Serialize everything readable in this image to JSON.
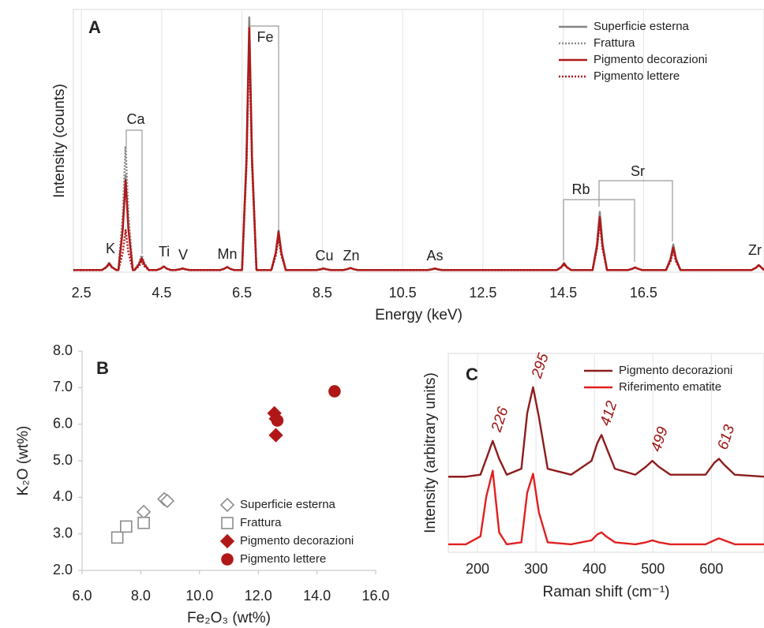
{
  "chart_data": [
    {
      "type": "line",
      "panel_label": "A",
      "xlabel": "Energy (keV)",
      "ylabel": "Intensity (counts)",
      "xlim": [
        2.3,
        19.5
      ],
      "ylim": [
        0,
        100
      ],
      "xticks": [
        2.5,
        4.5,
        6.5,
        8.5,
        10.5,
        12.5,
        14.5,
        16.5
      ],
      "grid": true,
      "legend": "upper right",
      "annotations": [
        "K",
        "Ca",
        "Ti",
        "V",
        "Mn",
        "Fe",
        "Cu",
        "Zn",
        "As",
        "Rb",
        "Sr",
        "Zr"
      ],
      "x": [
        2.3,
        3.01,
        3.12,
        3.19,
        3.26,
        3.37,
        3.42,
        3.53,
        3.6,
        3.67,
        3.78,
        3.82,
        3.93,
        4.0,
        4.07,
        4.18,
        4.37,
        4.48,
        4.55,
        4.62,
        4.73,
        4.84,
        4.95,
        5.02,
        5.09,
        5.2,
        5.95,
        6.06,
        6.13,
        6.2,
        6.31,
        6.5,
        6.61,
        6.68,
        6.75,
        6.86,
        7.23,
        7.34,
        7.41,
        7.48,
        7.59,
        8.35,
        8.46,
        8.53,
        8.6,
        8.71,
        9.02,
        9.13,
        9.2,
        9.27,
        9.38,
        11.12,
        11.23,
        11.3,
        11.37,
        11.48,
        14.34,
        14.45,
        14.52,
        14.59,
        14.7,
        15.23,
        15.34,
        15.41,
        15.48,
        15.59,
        16.11,
        16.22,
        16.29,
        16.36,
        16.47,
        17.06,
        17.17,
        17.24,
        17.31,
        17.42,
        19.19,
        19.3,
        19.37,
        19.44,
        19.5
      ],
      "series": [
        {
          "name": "Superficie esterna",
          "color": "#858585",
          "dash": "solid",
          "values": [
            0.8,
            0.8,
            2.0,
            3.5,
            2.0,
            0.8,
            0.8,
            17.1,
            37,
            17.1,
            0.8,
            0.8,
            2.9,
            5.5,
            2.9,
            0.8,
            0.8,
            1.4,
            2.2,
            1.4,
            0.8,
            0.8,
            1.1,
            1.4,
            1.1,
            0.8,
            0.8,
            1.3,
            2.0,
            1.3,
            0.8,
            0.8,
            44.1,
            97,
            44.1,
            0.8,
            0.8,
            7.6,
            16,
            7.6,
            0.8,
            0.8,
            1.1,
            1.4,
            1.1,
            0.8,
            0.8,
            1.2,
            1.6,
            1.2,
            0.8,
            0.8,
            1.1,
            1.4,
            1.1,
            0.8,
            0.8,
            2.0,
            3.5,
            2.0,
            0.8,
            0.8,
            10.8,
            23,
            10.8,
            0.8,
            0.8,
            1.3,
            1.8,
            1.3,
            0.8,
            0.8,
            5.2,
            10.6,
            5.2,
            0.8,
            0.8,
            1.7,
            2.7,
            1.7,
            0.8
          ]
        },
        {
          "name": "Frattura",
          "color": "#8c8c8c",
          "dash": "dotted",
          "values": [
            0.8,
            0.8,
            2.0,
            3.5,
            2.0,
            0.8,
            0.8,
            22.0,
            48,
            22.0,
            0.8,
            0.8,
            3.4,
            6.5,
            3.4,
            0.8,
            0.8,
            1.4,
            2.2,
            1.4,
            0.8,
            0.8,
            1.1,
            1.4,
            1.1,
            0.8,
            0.8,
            1.3,
            2.0,
            1.3,
            0.8,
            0.8,
            41.6,
            91.5,
            41.6,
            0.8,
            0.8,
            7.2,
            15,
            7.2,
            0.8,
            0.8,
            1.1,
            1.4,
            1.1,
            0.8,
            0.8,
            1.2,
            1.6,
            1.2,
            0.8,
            0.8,
            1.1,
            1.4,
            1.1,
            0.8,
            0.8,
            1.9,
            3.3,
            1.9,
            0.8,
            0.8,
            10.3,
            22,
            10.3,
            0.8,
            0.8,
            1.3,
            1.8,
            1.3,
            0.8,
            0.8,
            4.9,
            10,
            4.9,
            0.8,
            0.8,
            1.7,
            2.7,
            1.7,
            0.8
          ]
        },
        {
          "name": "Pigmento decorazioni",
          "color": "#b01818",
          "dash": "solid",
          "values": [
            0.8,
            0.8,
            1.9,
            3.3,
            1.9,
            0.8,
            0.8,
            16.2,
            35,
            16.2,
            0.8,
            0.8,
            2.9,
            5.4,
            2.9,
            0.8,
            0.8,
            1.4,
            2.2,
            1.4,
            0.8,
            0.8,
            1.1,
            1.4,
            1.1,
            0.8,
            0.8,
            1.3,
            2.0,
            1.3,
            0.8,
            0.8,
            42.3,
            93,
            42.3,
            0.8,
            0.8,
            7.4,
            15.4,
            7.4,
            0.8,
            0.8,
            1.1,
            1.4,
            1.1,
            0.8,
            0.8,
            1.2,
            1.6,
            1.2,
            0.8,
            0.8,
            1.1,
            1.4,
            1.1,
            0.8,
            0.8,
            1.9,
            3.3,
            1.9,
            0.8,
            0.8,
            9.9,
            21,
            9.9,
            0.8,
            0.8,
            1.3,
            1.8,
            1.3,
            0.8,
            0.8,
            4.7,
            9.4,
            4.7,
            0.8,
            0.8,
            1.7,
            2.7,
            1.7,
            0.8
          ]
        },
        {
          "name": "Pigmento lettere",
          "color": "#b01818",
          "dash": "dotted",
          "values": [
            0.8,
            0.8,
            1.8,
            3.0,
            1.8,
            0.8,
            0.8,
            7.6,
            16,
            7.6,
            0.8,
            0.8,
            2.2,
            4.0,
            2.2,
            0.8,
            0.8,
            1.4,
            2.2,
            1.4,
            0.8,
            0.8,
            1.1,
            1.4,
            1.1,
            0.8,
            0.8,
            1.3,
            2.0,
            1.3,
            0.8,
            0.8,
            40.3,
            88.5,
            40.3,
            0.8,
            0.8,
            6.3,
            13,
            6.3,
            0.8,
            0.8,
            1.1,
            1.4,
            1.1,
            0.8,
            0.8,
            1.2,
            1.6,
            1.2,
            0.8,
            0.8,
            1.1,
            1.4,
            1.1,
            0.8,
            0.8,
            1.8,
            3.0,
            1.8,
            0.8,
            0.8,
            9.0,
            19,
            9.0,
            0.8,
            0.8,
            1.3,
            1.8,
            1.3,
            0.8,
            0.8,
            4.1,
            8.2,
            4.1,
            0.8,
            0.8,
            1.7,
            2.7,
            1.7,
            0.8
          ]
        }
      ]
    },
    {
      "type": "scatter",
      "panel_label": "B",
      "xlabel": "Fe₂O₃ (wt%)",
      "ylabel": "K₂O (wt%)",
      "xlim": [
        6,
        16
      ],
      "ylim": [
        2,
        8
      ],
      "xticks": [
        {
          "value": 6,
          "label": "6.0"
        },
        {
          "value": 8,
          "label": "8.0"
        },
        {
          "value": 10,
          "label": "10.0"
        },
        {
          "value": 12,
          "label": "12.0"
        },
        {
          "value": 14,
          "label": "14.0"
        },
        {
          "value": 16,
          "label": "16.0"
        }
      ],
      "yticks": [
        {
          "value": 2,
          "label": "2.0"
        },
        {
          "value": 3,
          "label": "3.0"
        },
        {
          "value": 4,
          "label": "4.0"
        },
        {
          "value": 5,
          "label": "5.0"
        },
        {
          "value": 6,
          "label": "6.0"
        },
        {
          "value": 7,
          "label": "7.0"
        },
        {
          "value": 8,
          "label": "8.0"
        }
      ],
      "grid": false,
      "legend": "lower right",
      "series": [
        {
          "name": "Superficie esterna",
          "color": "#8c8c8c",
          "marker": "diamond",
          "filled": false,
          "x": [
            8.1,
            8.8,
            8.9
          ],
          "values": [
            3.6,
            3.95,
            3.9
          ]
        },
        {
          "name": "Frattura",
          "color": "#8c8c8c",
          "marker": "square",
          "filled": false,
          "x": [
            7.2,
            7.5,
            8.1
          ],
          "values": [
            2.9,
            3.2,
            3.3
          ]
        },
        {
          "name": "Pigmento decorazioni",
          "color": "#b01818",
          "marker": "diamond",
          "filled": true,
          "x": [
            12.55,
            12.6,
            12.6
          ],
          "values": [
            6.3,
            6.15,
            5.7
          ]
        },
        {
          "name": "Pigmento lettere",
          "color": "#b01818",
          "marker": "circle",
          "filled": true,
          "x": [
            12.65,
            14.6
          ],
          "values": [
            6.1,
            6.9
          ]
        }
      ]
    },
    {
      "type": "line",
      "panel_label": "C",
      "xlabel": "Raman shift (cm⁻¹)",
      "ylabel": "Intensity (arbitrary units)",
      "xlim": [
        150,
        690
      ],
      "ylim": [
        0,
        100
      ],
      "xticks": [
        200,
        300,
        400,
        500,
        600
      ],
      "grid": true,
      "legend": "upper right",
      "peak_labels": [
        226,
        295,
        412,
        499,
        613
      ],
      "x": [
        150,
        180,
        205,
        215,
        226,
        237,
        250,
        275,
        285,
        295,
        305,
        320,
        360,
        395,
        405,
        412,
        420,
        435,
        470,
        488,
        499,
        510,
        530,
        590,
        605,
        613,
        622,
        640,
        690
      ],
      "series": [
        {
          "name": "Pigmento decorazioni",
          "color": "#8e1c1c",
          "dash": "solid",
          "values": [
            38,
            38,
            39,
            47,
            56,
            47,
            39,
            42,
            70,
            83,
            68,
            42,
            39,
            46,
            55,
            59,
            53,
            42,
            39,
            43,
            46,
            43,
            39,
            39,
            45,
            47,
            44,
            39,
            38
          ]
        },
        {
          "name": "Riferimento ematite",
          "color": "#e02020",
          "dash": "solid",
          "values": [
            4,
            4,
            8,
            28,
            41,
            10,
            4,
            5,
            30,
            39.5,
            20,
            5,
            4,
            6,
            9,
            10,
            8,
            5,
            4,
            5,
            6,
            5,
            4,
            4,
            6,
            7,
            6,
            4,
            4
          ]
        }
      ]
    }
  ]
}
